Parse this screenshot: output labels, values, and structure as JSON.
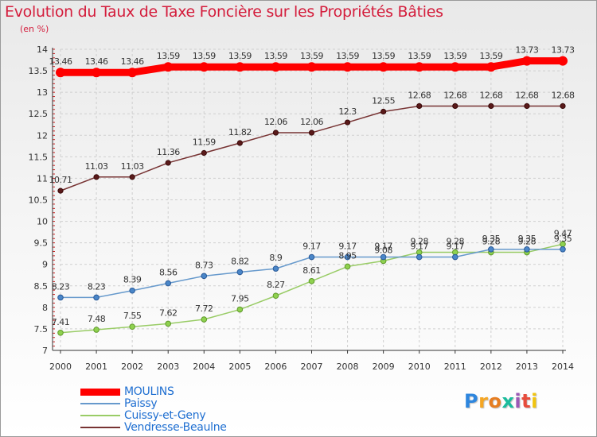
{
  "header": {
    "title": "Evolution du Taux de Taxe Foncière sur les Propriétés Bâties",
    "unit": "(en %)"
  },
  "chart_data": {
    "type": "line",
    "title": "Evolution du Taux de Taxe Foncière sur les Propriétés Bâties",
    "ylabel": "(en %)",
    "xlabel": "",
    "ylim": [
      7,
      14
    ],
    "yticks": [
      "7",
      "7.5",
      "8",
      "8.5",
      "9",
      "9.5",
      "10",
      "10.5",
      "11",
      "11.5",
      "12",
      "12.5",
      "13",
      "13.5",
      "14"
    ],
    "categories": [
      "2000",
      "2001",
      "2002",
      "2003",
      "2004",
      "2005",
      "2006",
      "2007",
      "2008",
      "2009",
      "2010",
      "2011",
      "2012",
      "2013",
      "2014"
    ],
    "grid": true,
    "series": [
      {
        "name": "MOULINS",
        "color": "#ff0000",
        "values": [
          13.46,
          13.46,
          13.46,
          13.59,
          13.59,
          13.59,
          13.59,
          13.59,
          13.59,
          13.59,
          13.59,
          13.59,
          13.59,
          13.73,
          13.73
        ],
        "labels": [
          "13.46",
          "13.46",
          "13.46",
          "13.59",
          "13.59",
          "13.59",
          "13.59",
          "13.59",
          "13.59",
          "13.59",
          "13.59",
          "13.59",
          "13.59",
          "13.73",
          "13.73"
        ]
      },
      {
        "name": "Paissy",
        "color": "#6699cc",
        "values": [
          8.23,
          8.23,
          8.39,
          8.56,
          8.73,
          8.82,
          8.9,
          9.17,
          9.17,
          9.17,
          9.17,
          9.17,
          9.35,
          9.35,
          9.35
        ],
        "labels": [
          "8.23",
          "8.23",
          "8.39",
          "8.56",
          "8.73",
          "8.82",
          "8.9",
          "9.17",
          "9.17",
          "9.17",
          "9.17",
          "9.17",
          "9.35",
          "9.35",
          "9.35"
        ]
      },
      {
        "name": "Cuissy-et-Geny",
        "color": "#99cc66",
        "values": [
          7.41,
          7.48,
          7.55,
          7.62,
          7.72,
          7.95,
          8.27,
          8.61,
          8.95,
          9.08,
          9.28,
          9.28,
          9.28,
          9.28,
          9.47
        ],
        "labels": [
          "7.41",
          "7.48",
          "7.55",
          "7.62",
          "7.72",
          "7.95",
          "8.27",
          "8.61",
          "8.95",
          "9.08",
          "9.28",
          "9.28",
          "9.28",
          "9.28",
          "9.47"
        ]
      },
      {
        "name": "Vendresse-Beaulne",
        "color": "#773333",
        "values": [
          10.71,
          11.03,
          11.03,
          11.36,
          11.59,
          11.82,
          12.06,
          12.06,
          12.3,
          12.55,
          12.68,
          12.68,
          12.68,
          12.68,
          12.68
        ],
        "labels": [
          "10.71",
          "11.03",
          "11.03",
          "11.36",
          "11.59",
          "11.82",
          "12.06",
          "12.06",
          "12.3",
          "12.55",
          "12.68",
          "12.68",
          "12.68",
          "12.68",
          "12.68"
        ]
      }
    ]
  },
  "legend": {
    "items": [
      {
        "label": "MOULINS",
        "color": "#ff0000"
      },
      {
        "label": "Paissy",
        "color": "#6699cc"
      },
      {
        "label": "Cuissy-et-Geny",
        "color": "#99cc66"
      },
      {
        "label": "Vendresse-Beaulne",
        "color": "#773333"
      }
    ]
  },
  "logo": {
    "letters": [
      "P",
      "r",
      "o",
      "x",
      "i",
      "t",
      "i"
    ],
    "colors": [
      "#2e86de",
      "#f5a623",
      "#e67e22",
      "#1abc9c",
      "#9b59b6",
      "#e74c3c",
      "#f1c40f"
    ]
  }
}
